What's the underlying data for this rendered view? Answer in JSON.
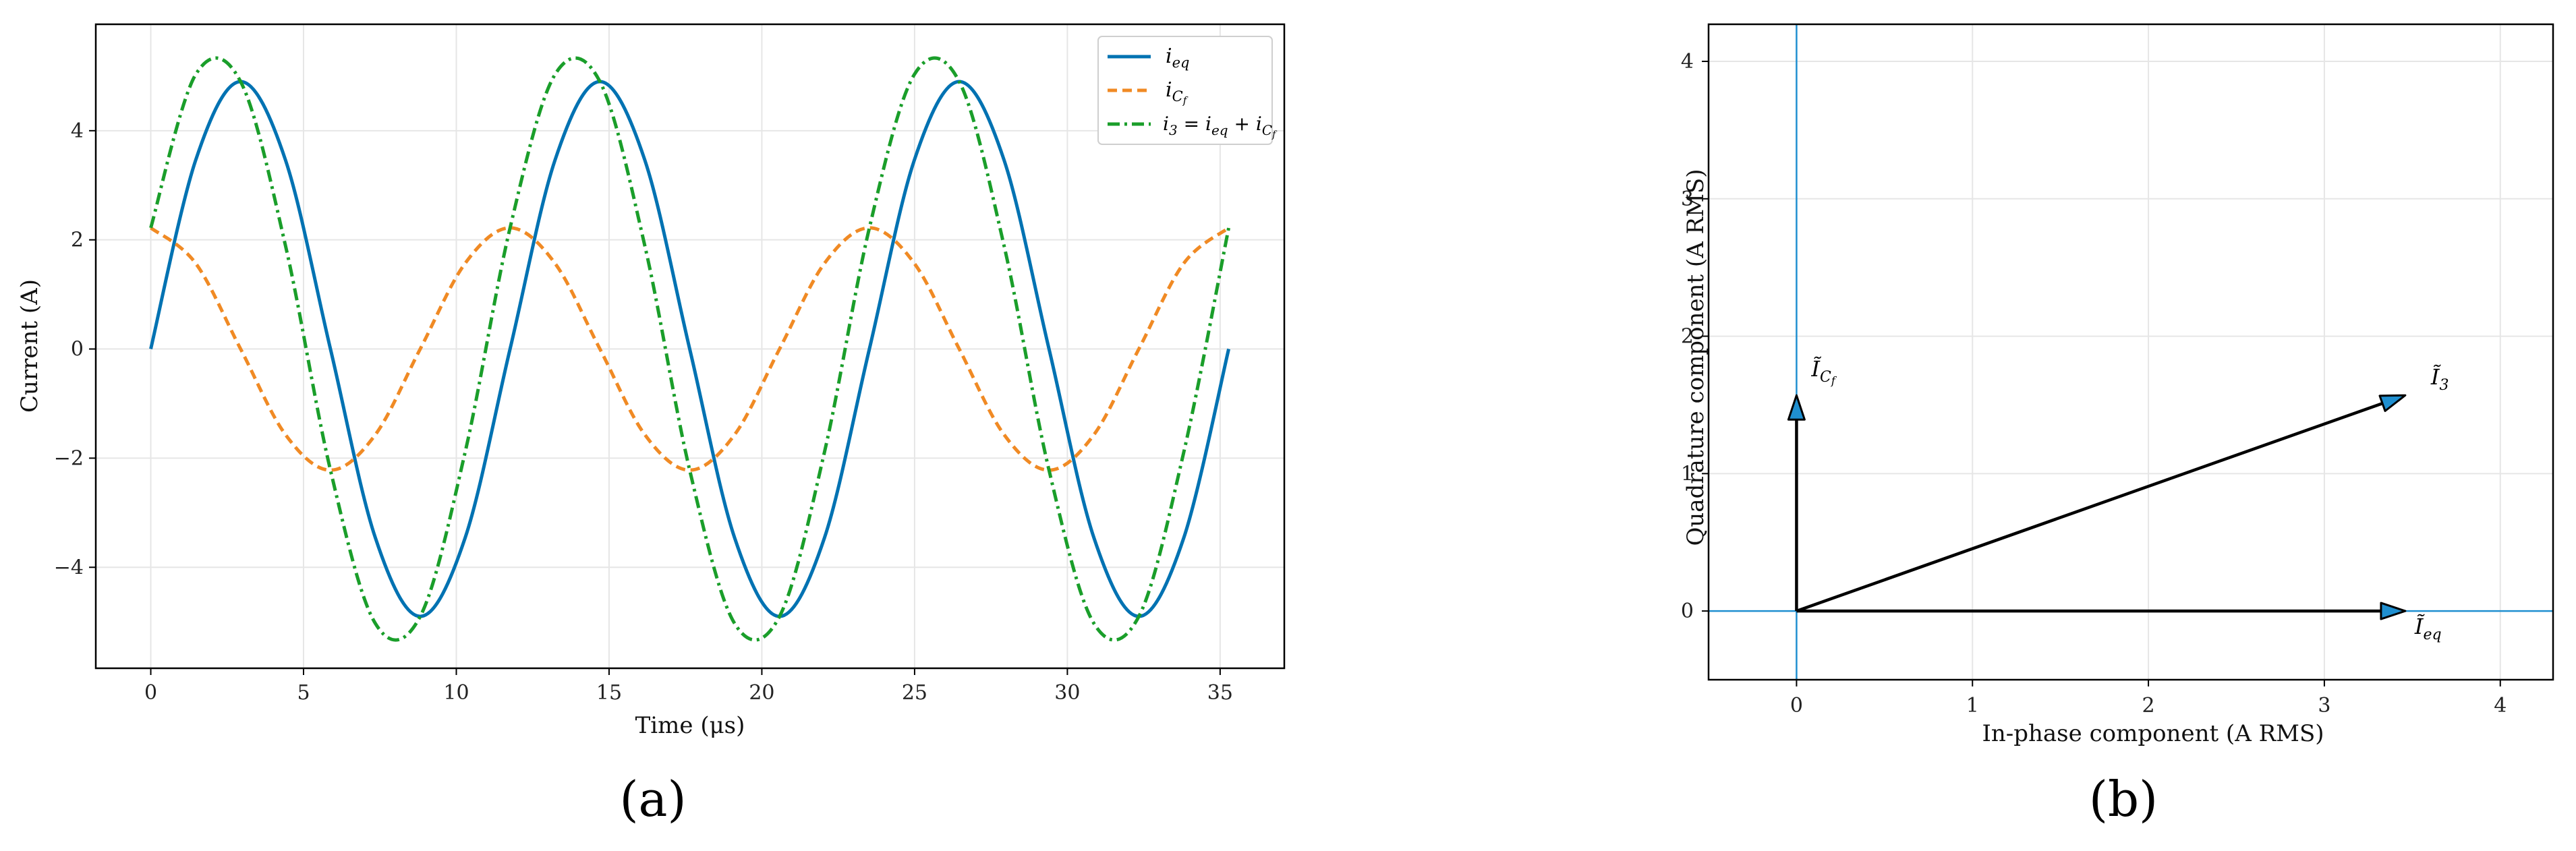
{
  "colors": {
    "blue": "#0072B2",
    "orange": "#F08A24",
    "green": "#1A9E2A",
    "black": "#000000",
    "axis_blue": "#1f8fd0"
  },
  "chart_data": [
    {
      "type": "line",
      "panel_label": "(a)",
      "xlabel": "Time (μs)",
      "ylabel": "Current (A)",
      "xlim": [
        -1.8,
        37.1
      ],
      "ylim": [
        -5.85,
        5.95
      ],
      "xticks": [
        0,
        5,
        10,
        15,
        20,
        25,
        30,
        35
      ],
      "xtick_labels": [
        "0",
        "5",
        "10",
        "15",
        "20",
        "25",
        "30",
        "35"
      ],
      "yticks": [
        -4,
        -2,
        0,
        2,
        4
      ],
      "ytick_labels": [
        "−4",
        "−2",
        "0",
        "2",
        "4"
      ],
      "grid": true,
      "legend_placement": "top-right",
      "series": [
        {
          "name": "i_eq",
          "style": "solid",
          "color": "blue",
          "x": [
            0.0,
            1.47,
            2.94,
            4.41,
            5.88,
            7.35,
            8.82,
            10.29,
            11.76,
            13.23,
            14.7,
            16.17,
            17.64,
            19.11,
            20.58,
            22.05,
            23.52,
            24.99,
            26.46,
            27.93,
            29.4,
            30.87,
            32.34,
            33.81,
            35.28
          ],
          "y": [
            0.0,
            3.46,
            4.9,
            3.46,
            0.0,
            -3.46,
            -4.9,
            -3.46,
            0.0,
            3.46,
            4.9,
            3.46,
            0.0,
            -3.46,
            -4.9,
            -3.46,
            0.0,
            3.46,
            4.9,
            3.46,
            0.0,
            -3.46,
            -4.9,
            -3.46,
            0.0
          ]
        },
        {
          "name": "i_Cf",
          "style": "dashed",
          "color": "orange",
          "x": [
            0.0,
            1.47,
            2.94,
            4.41,
            5.88,
            7.35,
            8.82,
            10.29,
            11.76,
            13.23,
            14.7,
            16.17,
            17.64,
            19.11,
            20.58,
            22.05,
            23.52,
            24.99,
            26.46,
            27.93,
            29.4,
            30.87,
            32.34,
            33.81,
            35.28
          ],
          "y": [
            2.22,
            1.57,
            0.0,
            -1.57,
            -2.22,
            -1.57,
            0.0,
            1.57,
            2.22,
            1.57,
            0.0,
            -1.57,
            -2.22,
            -1.57,
            0.0,
            1.57,
            2.22,
            1.57,
            0.0,
            -1.57,
            -2.22,
            -1.57,
            0.0,
            1.57,
            2.22
          ]
        },
        {
          "name": "i_3 = i_eq + i_Cf",
          "style": "dashdot",
          "color": "green",
          "x": [
            0.0,
            1.47,
            2.94,
            4.41,
            5.88,
            7.35,
            8.82,
            10.29,
            11.76,
            13.23,
            14.7,
            16.17,
            17.64,
            19.11,
            20.58,
            22.05,
            23.52,
            24.99,
            26.46,
            27.93,
            29.4,
            30.87,
            32.34,
            33.81,
            35.28
          ],
          "y": [
            2.22,
            5.03,
            4.9,
            1.89,
            -2.22,
            -5.03,
            -4.9,
            -1.89,
            2.22,
            5.03,
            4.9,
            1.89,
            -2.22,
            -5.03,
            -4.9,
            -1.89,
            2.22,
            5.03,
            4.9,
            1.89,
            -2.22,
            -5.03,
            -4.9,
            -1.89,
            2.22
          ]
        }
      ]
    },
    {
      "type": "phasor",
      "panel_label": "(b)",
      "xlabel": "In-phase component (A RMS)",
      "ylabel": "Quadrature component (A RMS)",
      "xlim": [
        -0.5,
        4.3
      ],
      "ylim": [
        -0.5,
        4.27
      ],
      "xticks": [
        0,
        1,
        2,
        3,
        4
      ],
      "xtick_labels": [
        "0",
        "1",
        "2",
        "3",
        "4"
      ],
      "yticks": [
        0,
        1,
        2,
        3,
        4
      ],
      "ytick_labels": [
        "0",
        "1",
        "2",
        "3",
        "4"
      ],
      "grid": true,
      "vectors": [
        {
          "name": "Ĩ_eq",
          "x": 3.46,
          "y": 0.0
        },
        {
          "name": "Ĩ_Cf",
          "x": 0.0,
          "y": 1.57
        },
        {
          "name": "Ĩ_3",
          "x": 3.46,
          "y": 1.57
        }
      ]
    }
  ]
}
